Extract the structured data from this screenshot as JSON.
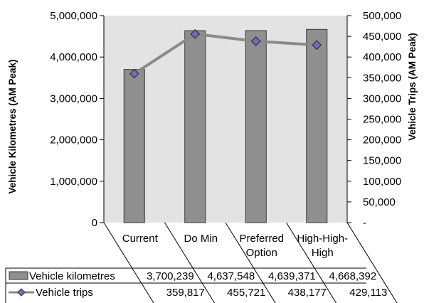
{
  "chart_data": {
    "type": "bar",
    "categories": [
      [
        "Current"
      ],
      [
        "Do Min"
      ],
      [
        "Preferred",
        "Option"
      ],
      [
        "High-High-",
        "High"
      ]
    ],
    "series": [
      {
        "name": "Vehicle kilometres",
        "type": "bar",
        "axis": "left",
        "values": [
          3700239,
          4637548,
          4639371,
          4668392
        ],
        "value_labels": [
          "3,700,239",
          "4,637,548",
          "4,639,371",
          "4,668,392"
        ]
      },
      {
        "name": "Vehicle trips",
        "type": "line",
        "axis": "right",
        "values": [
          359817,
          455721,
          438177,
          429113
        ],
        "value_labels": [
          "359,817",
          "455,721",
          "438,177",
          "429,113"
        ]
      }
    ],
    "ylabel": "Vehicle Kilometres (AM Peak)",
    "y2label": "Vehicle Trips (AM Peak)",
    "ylim": [
      0,
      5000000
    ],
    "y2lim": [
      0,
      500000
    ],
    "yticks": [
      "0",
      "1,000,000",
      "2,000,000",
      "3,000,000",
      "4,000,000",
      "5,000,000"
    ],
    "y2ticks": [
      "-",
      "50,000",
      "100,000",
      "150,000",
      "200,000",
      "250,000",
      "300,000",
      "350,000",
      "400,000",
      "450,000",
      "500,000"
    ],
    "grid": false,
    "legend": "data-table",
    "colors": {
      "plot_bg": "#e3e3e3",
      "bar_fill": "#8f8f8f",
      "bar_stroke": "#3a3a3a",
      "line": "#8a8a8a",
      "marker_fill": "#6f73a6",
      "marker_stroke": "#2a2d5a"
    }
  }
}
